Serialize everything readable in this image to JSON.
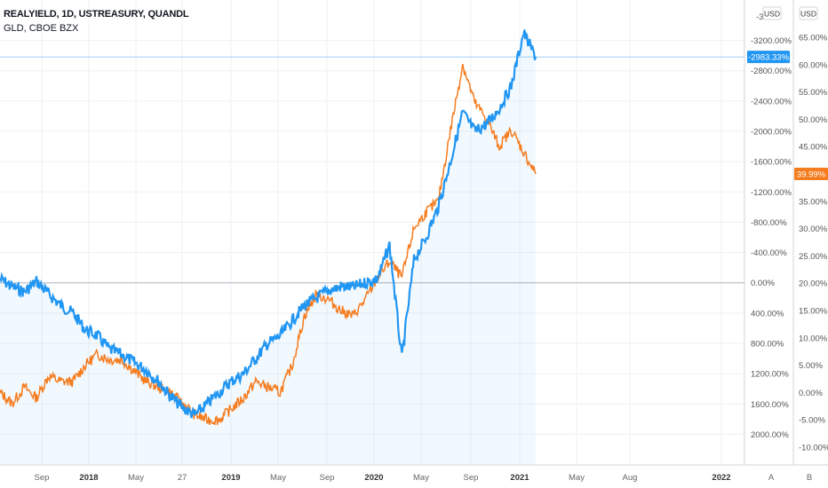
{
  "legend": {
    "line1": "REALYIELD, 1D, USTREASURY, QUANDL",
    "line2": "GLD, CBOE BZX"
  },
  "currency_buttons": [
    "USD",
    "USD"
  ],
  "scale_buttons": [
    "A",
    "B"
  ],
  "top_clipped_labels": [
    "-3",
    "7"
  ],
  "chart_data": {
    "type": "line",
    "x": [
      "2017-06",
      "2017-07",
      "2017-08",
      "2017-09",
      "2017-10",
      "2017-11",
      "2017-12",
      "2018-01",
      "2018-02",
      "2018-03",
      "2018-04",
      "2018-05",
      "2018-06",
      "2018-07",
      "2018-08",
      "2018-09",
      "2018-10",
      "2018-11",
      "2018-12",
      "2019-01",
      "2019-02",
      "2019-03",
      "2019-04",
      "2019-05",
      "2019-06",
      "2019-07",
      "2019-08",
      "2019-09",
      "2019-10",
      "2019-11",
      "2019-12",
      "2020-01",
      "2020-02",
      "2020-03",
      "2020-04",
      "2020-05",
      "2020-06",
      "2020-07",
      "2020-08",
      "2020-09",
      "2020-10",
      "2020-11",
      "2020-12",
      "2021-01",
      "2021-02"
    ],
    "x_ticks": [
      "Sep",
      "2018",
      "May",
      "27",
      "2019",
      "May",
      "Sep",
      "2020",
      "May",
      "Sep",
      "2021",
      "May",
      "Aug",
      "2022"
    ],
    "series": [
      {
        "name": "REALYIELD, 1D, USTREASURY, QUANDL",
        "color": "#2196f3",
        "axis": "left",
        "values": [
          -50,
          50,
          120,
          -20,
          150,
          300,
          400,
          620,
          700,
          880,
          950,
          1050,
          1150,
          1300,
          1500,
          1650,
          1750,
          1600,
          1450,
          1300,
          1200,
          1000,
          800,
          700,
          500,
          300,
          200,
          100,
          50,
          60,
          0,
          -50,
          -500,
          1000,
          -300,
          -600,
          -1000,
          -1600,
          -2250,
          -2000,
          -2100,
          -2300,
          -2600,
          -3300,
          -2983.33
        ],
        "last_value_label": "-2983.33%"
      },
      {
        "name": "GLD, CBOE BZX",
        "color": "#f57c1f",
        "axis": "right",
        "values": [
          0,
          -2,
          1,
          -1,
          3,
          2,
          2,
          5,
          7,
          6,
          6,
          4,
          2,
          1,
          0,
          -2,
          -4,
          -5,
          -5,
          -3,
          -1,
          2,
          1,
          0,
          5,
          14,
          18,
          17,
          15,
          14,
          17,
          21,
          24,
          21,
          30,
          33,
          35,
          48,
          60,
          53,
          50,
          45,
          48,
          44,
          39.99
        ],
        "last_value_label": "39.99%"
      }
    ],
    "left_axis": {
      "ticks": [
        "-3200.00%",
        "-2800.00%",
        "-2400.00%",
        "-2000.00%",
        "-1600.00%",
        "-1200.00%",
        "-800.00%",
        "-400.00%",
        "0.00%",
        "400.00%",
        "800.00%",
        "1200.00%",
        "1600.00%",
        "2000.00%"
      ],
      "inverted": true,
      "range": [
        2400,
        -3600
      ]
    },
    "right_axis": {
      "ticks": [
        "65.00%",
        "60.00%",
        "55.00%",
        "50.00%",
        "45.00%",
        "40.00%",
        "35.00%",
        "30.00%",
        "25.00%",
        "20.00%",
        "15.00%",
        "10.00%",
        "5.00%",
        "0.00%",
        "-5.00%",
        "-10.00%"
      ],
      "range": [
        -13,
        70
      ],
      "zero_line_value": 20
    },
    "grid": true,
    "legend_position": "top-left"
  }
}
